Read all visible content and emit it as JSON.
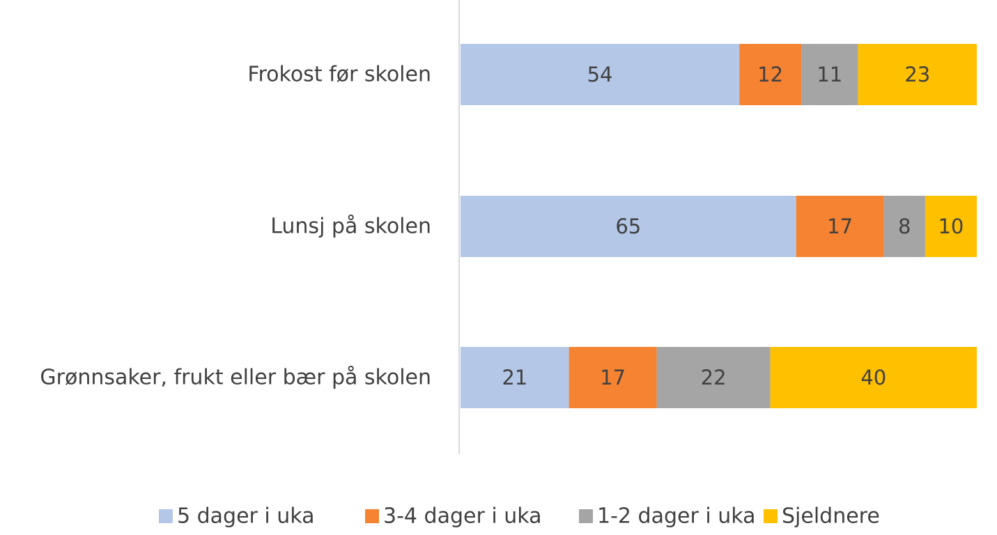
{
  "chart_data": {
    "type": "bar",
    "orientation": "horizontal",
    "stacked": true,
    "categories": [
      "Frokost før skolen",
      "Lunsj på skolen",
      "Grønnsaker, frukt eller bær på skolen"
    ],
    "series": [
      {
        "name": "5 dager i uka",
        "values": [
          54,
          65,
          21
        ],
        "color": "#b4c7e7"
      },
      {
        "name": "3-4 dager i uka",
        "values": [
          12,
          17,
          17
        ],
        "color": "#f58332"
      },
      {
        "name": "1-2 dager i uka",
        "values": [
          11,
          8,
          22
        ],
        "color": "#a5a5a5"
      },
      {
        "name": "Sjeldnere",
        "values": [
          23,
          10,
          40
        ],
        "color": "#ffc000"
      }
    ],
    "xlim": [
      0,
      100
    ],
    "legend_position": "bottom",
    "grid": false,
    "title": "",
    "xlabel": "",
    "ylabel": ""
  }
}
